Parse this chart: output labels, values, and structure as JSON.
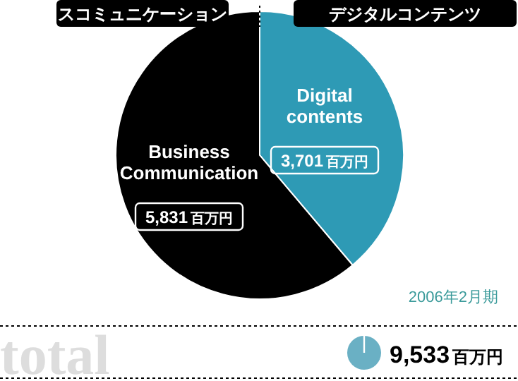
{
  "chart_data": {
    "type": "pie",
    "title": "total",
    "subtitle": "2006年2月期",
    "categories": [
      "Digital contents",
      "Business Communication"
    ],
    "values": [
      3701,
      5831
    ],
    "colors": [
      "#2e9ab5",
      "#000000"
    ],
    "value_labels": [
      "3,701百万円",
      "5,831百万円"
    ],
    "annotations": [
      "スコミュニケーション",
      "デジタルコンテンツ",
      "9,533百万円"
    ]
  }
}
